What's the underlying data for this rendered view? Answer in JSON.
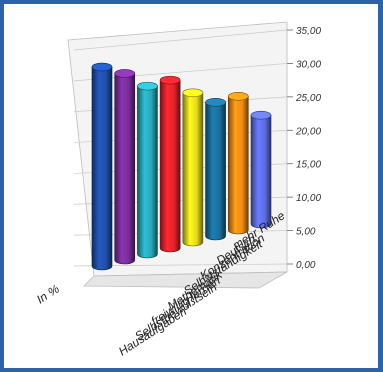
{
  "chart_data": {
    "type": "bar",
    "title": "",
    "xlabel": "",
    "ylabel": "In %",
    "ylim": [
      0,
      35
    ],
    "y_ticks": [
      "0,00",
      "5,00",
      "10,00",
      "15,00",
      "20,00",
      "25,00",
      "30,00",
      "35,00"
    ],
    "grid": true,
    "categories": [
      "Hausaufgaben",
      "Selbstbewußtsein",
      "freiwillig lernen",
      "Mathematik",
      "Selbstständigkeit",
      "Konzentration",
      "Deutsch",
      "mehr Ruhe"
    ],
    "values": [
      32,
      30,
      27,
      27,
      24,
      21.5,
      21.5,
      17.5
    ],
    "colors": [
      "#1f4fa8",
      "#7a2d9c",
      "#2aa6b8",
      "#e2232a",
      "#e4d91a",
      "#1b6e9c",
      "#f08a12",
      "#5d6de0"
    ]
  }
}
